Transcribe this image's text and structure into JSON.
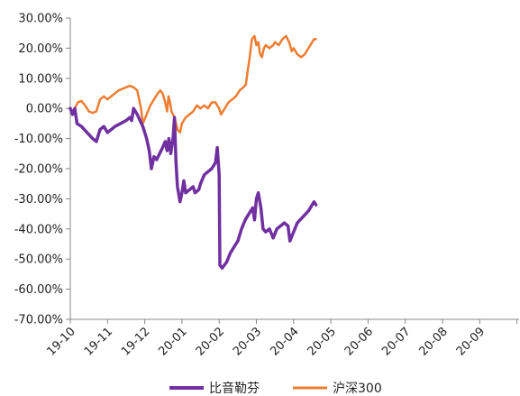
{
  "chart_data": {
    "type": "line",
    "title": "",
    "xlabel": "",
    "ylabel": "",
    "ylim": [
      -70,
      30
    ],
    "y_ticks": [
      30,
      20,
      10,
      0,
      -10,
      -20,
      -30,
      -40,
      -50,
      -60,
      -70
    ],
    "y_tick_labels": [
      "30.00%",
      "20.00%",
      "10.00%",
      "0.00%",
      "-10.00%",
      "-20.00%",
      "-30.00%",
      "-40.00%",
      "-50.00%",
      "-60.00%",
      "-70.00%"
    ],
    "x_tick_labels": [
      "19-10",
      "19-11",
      "19-12",
      "20-01",
      "20-02",
      "20-03",
      "20-04",
      "20-05",
      "20-06",
      "20-07",
      "20-08",
      "20-09"
    ],
    "grid": false,
    "legend_position": "bottom",
    "series": [
      {
        "name": "比音勒芬",
        "color": "#7030A0",
        "points": [
          [
            0,
            0
          ],
          [
            0.06,
            -2
          ],
          [
            0.12,
            0
          ],
          [
            0.18,
            -5
          ],
          [
            0.3,
            -6
          ],
          [
            0.45,
            -8
          ],
          [
            0.6,
            -10
          ],
          [
            0.7,
            -11
          ],
          [
            0.8,
            -7
          ],
          [
            0.9,
            -6
          ],
          [
            1.0,
            -8
          ],
          [
            1.1,
            -7
          ],
          [
            1.2,
            -6
          ],
          [
            1.35,
            -5
          ],
          [
            1.5,
            -4
          ],
          [
            1.6,
            -3
          ],
          [
            1.65,
            -4
          ],
          [
            1.7,
            0
          ],
          [
            1.8,
            -2
          ],
          [
            1.95,
            -6
          ],
          [
            2.05,
            -10
          ],
          [
            2.12,
            -14
          ],
          [
            2.18,
            -20
          ],
          [
            2.25,
            -16
          ],
          [
            2.32,
            -17
          ],
          [
            2.4,
            -15
          ],
          [
            2.48,
            -13
          ],
          [
            2.55,
            -11
          ],
          [
            2.6,
            -14
          ],
          [
            2.65,
            -10
          ],
          [
            2.7,
            -15
          ],
          [
            2.76,
            -10
          ],
          [
            2.8,
            -3
          ],
          [
            2.84,
            -18
          ],
          [
            2.88,
            -26
          ],
          [
            2.95,
            -31
          ],
          [
            3.0,
            -28
          ],
          [
            3.05,
            -24
          ],
          [
            3.1,
            -28
          ],
          [
            3.2,
            -27
          ],
          [
            3.3,
            -26
          ],
          [
            3.35,
            -28
          ],
          [
            3.45,
            -27
          ],
          [
            3.5,
            -25
          ],
          [
            3.6,
            -22
          ],
          [
            3.7,
            -21
          ],
          [
            3.8,
            -20
          ],
          [
            3.9,
            -18
          ],
          [
            3.95,
            -13
          ],
          [
            4.0,
            -22
          ],
          [
            4.02,
            -52
          ],
          [
            4.08,
            -53
          ],
          [
            4.2,
            -51
          ],
          [
            4.3,
            -48
          ],
          [
            4.4,
            -46
          ],
          [
            4.5,
            -44
          ],
          [
            4.6,
            -40
          ],
          [
            4.7,
            -37
          ],
          [
            4.8,
            -35
          ],
          [
            4.9,
            -33
          ],
          [
            4.95,
            -37
          ],
          [
            5.0,
            -30
          ],
          [
            5.05,
            -28
          ],
          [
            5.12,
            -33
          ],
          [
            5.18,
            -40
          ],
          [
            5.25,
            -41
          ],
          [
            5.35,
            -40
          ],
          [
            5.45,
            -43
          ],
          [
            5.55,
            -40
          ],
          [
            5.65,
            -39
          ],
          [
            5.75,
            -38
          ],
          [
            5.85,
            -39
          ],
          [
            5.9,
            -44
          ],
          [
            6.0,
            -41
          ],
          [
            6.1,
            -38
          ],
          [
            6.25,
            -36
          ],
          [
            6.4,
            -34
          ],
          [
            6.5,
            -32
          ],
          [
            6.55,
            -31
          ],
          [
            6.6,
            -32
          ]
        ]
      },
      {
        "name": "沪深300",
        "color": "#ED7D31",
        "points": [
          [
            0,
            0
          ],
          [
            0.06,
            -1
          ],
          [
            0.12,
            0
          ],
          [
            0.2,
            2
          ],
          [
            0.3,
            2.5
          ],
          [
            0.4,
            1
          ],
          [
            0.5,
            -1
          ],
          [
            0.6,
            -1.5
          ],
          [
            0.7,
            -1
          ],
          [
            0.8,
            3
          ],
          [
            0.9,
            4
          ],
          [
            1.0,
            3
          ],
          [
            1.1,
            4
          ],
          [
            1.2,
            5
          ],
          [
            1.3,
            6
          ],
          [
            1.4,
            6.5
          ],
          [
            1.5,
            7
          ],
          [
            1.6,
            7.5
          ],
          [
            1.7,
            7
          ],
          [
            1.8,
            6
          ],
          [
            1.9,
            0
          ],
          [
            1.95,
            -5
          ],
          [
            2.05,
            -2
          ],
          [
            2.15,
            1
          ],
          [
            2.25,
            3
          ],
          [
            2.35,
            5
          ],
          [
            2.42,
            6
          ],
          [
            2.48,
            5
          ],
          [
            2.55,
            2
          ],
          [
            2.6,
            -1
          ],
          [
            2.64,
            4
          ],
          [
            2.68,
            2
          ],
          [
            2.72,
            -1
          ],
          [
            2.8,
            -3
          ],
          [
            2.88,
            -7
          ],
          [
            2.95,
            -8
          ],
          [
            3.0,
            -5
          ],
          [
            3.1,
            -3
          ],
          [
            3.2,
            -2
          ],
          [
            3.3,
            -1
          ],
          [
            3.4,
            1
          ],
          [
            3.5,
            0
          ],
          [
            3.6,
            1
          ],
          [
            3.7,
            0
          ],
          [
            3.8,
            2
          ],
          [
            3.9,
            2
          ],
          [
            3.95,
            1
          ],
          [
            4.0,
            0
          ],
          [
            4.05,
            -2
          ],
          [
            4.15,
            0
          ],
          [
            4.25,
            2
          ],
          [
            4.35,
            3
          ],
          [
            4.45,
            4
          ],
          [
            4.55,
            6
          ],
          [
            4.65,
            7
          ],
          [
            4.72,
            8
          ],
          [
            4.76,
            12
          ],
          [
            4.82,
            17
          ],
          [
            4.88,
            23
          ],
          [
            4.95,
            24
          ],
          [
            5.0,
            21
          ],
          [
            5.05,
            22
          ],
          [
            5.1,
            18
          ],
          [
            5.15,
            17
          ],
          [
            5.2,
            20
          ],
          [
            5.25,
            21
          ],
          [
            5.35,
            20
          ],
          [
            5.45,
            21
          ],
          [
            5.5,
            22
          ],
          [
            5.6,
            21
          ],
          [
            5.7,
            23
          ],
          [
            5.8,
            24
          ],
          [
            5.88,
            22
          ],
          [
            5.95,
            19
          ],
          [
            6.0,
            20
          ],
          [
            6.1,
            18
          ],
          [
            6.2,
            17
          ],
          [
            6.3,
            18
          ],
          [
            6.4,
            20
          ],
          [
            6.5,
            22
          ],
          [
            6.55,
            23
          ],
          [
            6.6,
            23
          ]
        ]
      }
    ]
  }
}
